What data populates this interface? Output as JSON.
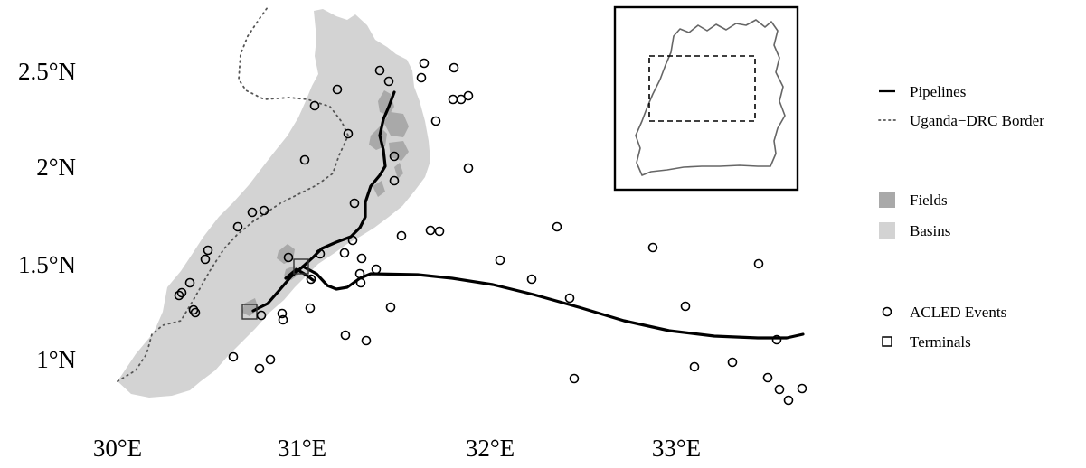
{
  "axes": {
    "x_ticks": [
      "30°E",
      "31°E",
      "32°E",
      "33°E"
    ],
    "y_ticks": [
      "2.5°N",
      "2°N",
      "1.5°N",
      "1°N"
    ]
  },
  "legend": {
    "pipelines": "Pipelines",
    "border": "Uganda−DRC Border",
    "fields": "Fields",
    "basins": "Basins",
    "events": "ACLED Events",
    "terminals": "Terminals"
  },
  "colors": {
    "basins": "#d3d3d3",
    "fields": "#a9a9a9",
    "pipeline": "#000000",
    "inset_outline": "#555555"
  }
}
